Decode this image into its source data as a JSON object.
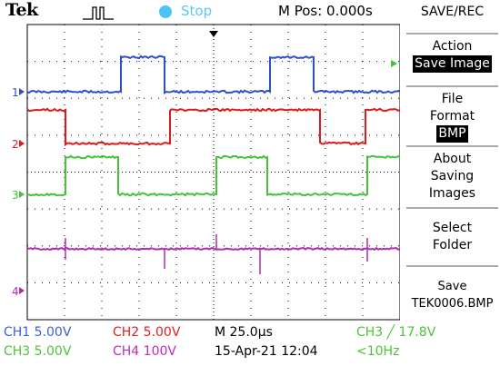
{
  "header": {
    "brand": "Tek",
    "run_state": "Stop",
    "horizontal_position": "M Pos: 0.000s"
  },
  "menu": {
    "title": "SAVE/REC",
    "items": [
      {
        "label_lines": [
          "Action"
        ],
        "value": "Save Image"
      },
      {
        "label_lines": [
          "File",
          "Format"
        ],
        "value": "BMP"
      },
      {
        "label_lines": [
          "About",
          "Saving",
          "Images"
        ]
      },
      {
        "label_lines": [
          "Select",
          "Folder"
        ]
      },
      {
        "label_lines": [
          "Save",
          "TEK0006.BMP"
        ]
      }
    ]
  },
  "channel_markers": [
    "1",
    "2",
    "3",
    "4"
  ],
  "readouts": {
    "ch1": "CH1  5.00V",
    "ch2": "CH2  5.00V",
    "ch3": "CH3  5.00V",
    "ch4": "CH4  100V",
    "timebase": "M 25.0µs",
    "datetime": "15-Apr-21 12:04",
    "trigger": "CH3  ╱  17.8V",
    "trigger_freq": "<10Hz"
  },
  "colors": {
    "ch1": "#2f4fc8",
    "ch2": "#e01a1a",
    "ch3": "#44c23a",
    "ch4": "#b02cb0",
    "grid": "#000000"
  }
}
